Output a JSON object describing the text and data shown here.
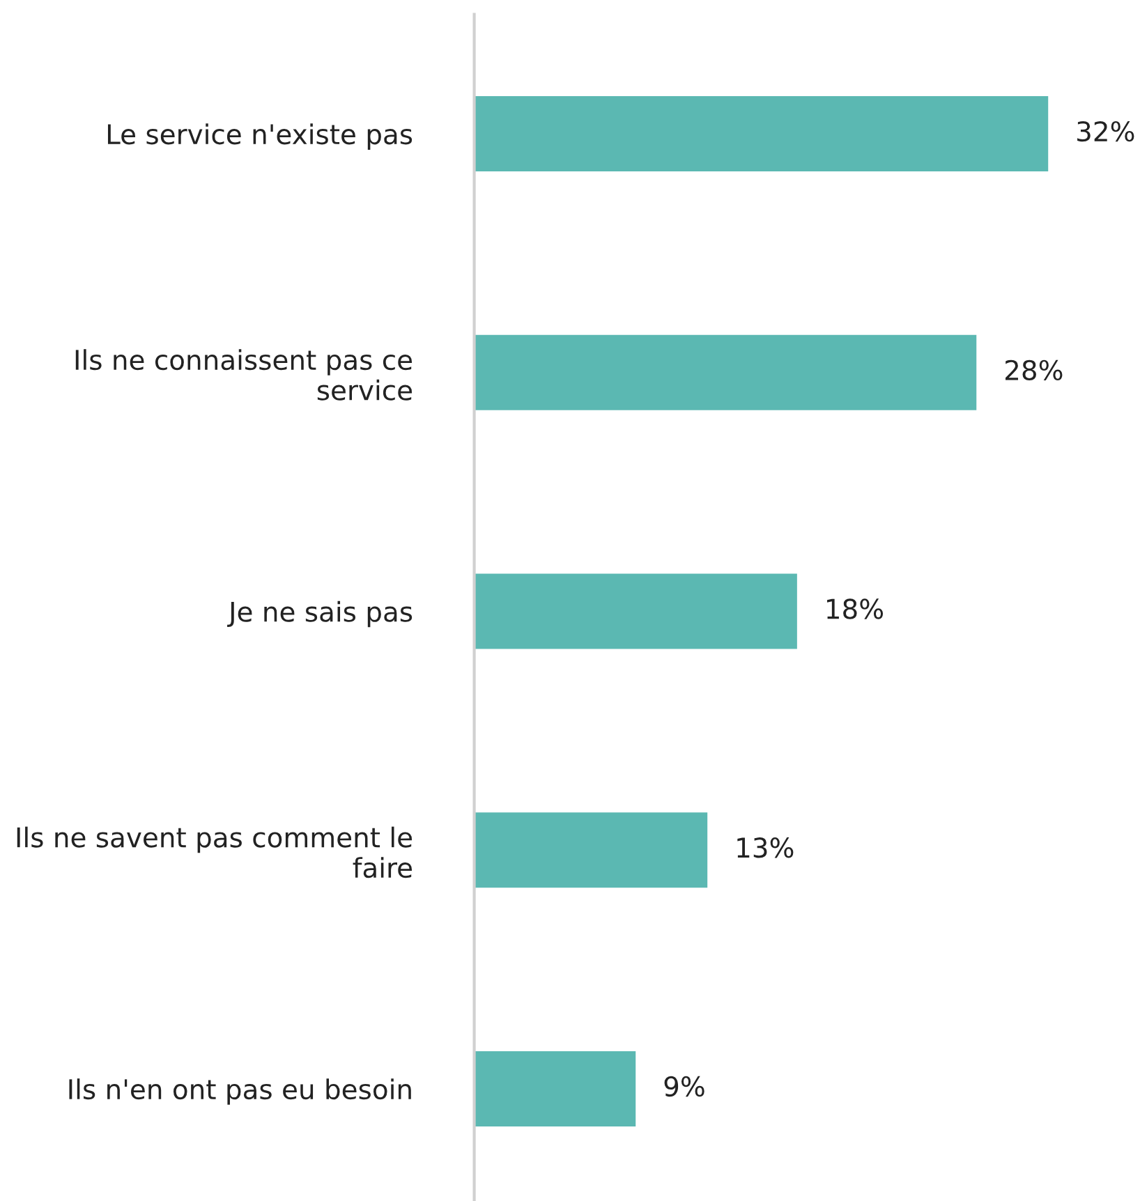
{
  "chart_data": {
    "type": "bar",
    "orientation": "horizontal",
    "categories": [
      "Le service n'existe pas",
      "Ils ne connaissent pas ce\nservice",
      "Je ne sais pas",
      "Ils ne savent pas comment le\nfaire",
      "Ils n'en ont pas eu besoin"
    ],
    "values": [
      32,
      28,
      18,
      13,
      9
    ],
    "value_labels": [
      "32%",
      "28%",
      "18%",
      "13%",
      "9%"
    ],
    "color": "#5bb8b2",
    "tick_labels": "y",
    "grid": false,
    "legend": false
  }
}
